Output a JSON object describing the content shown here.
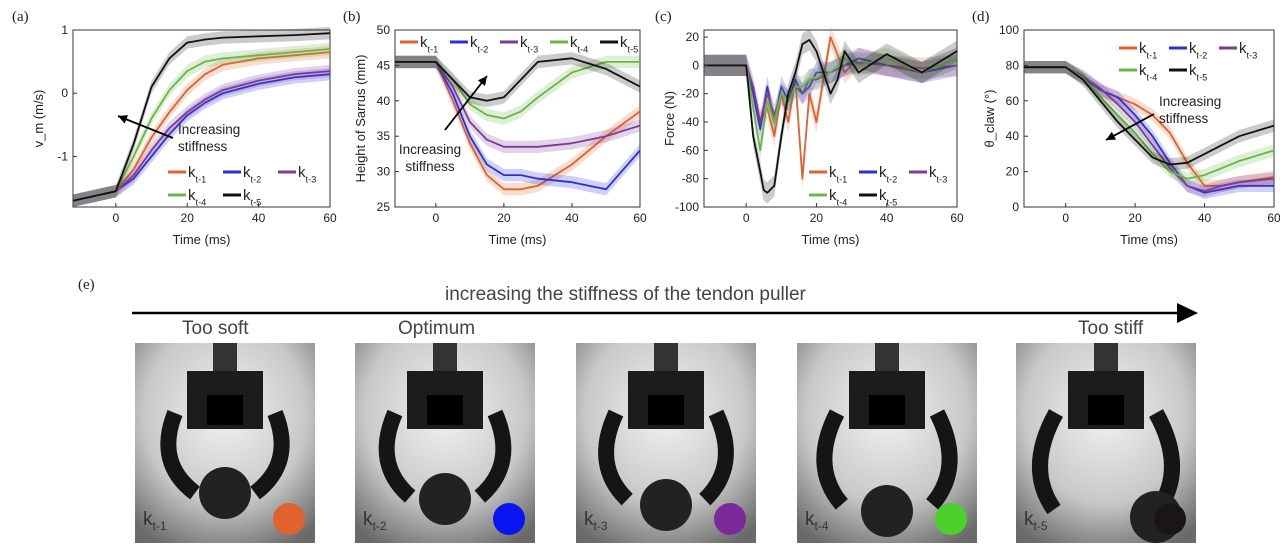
{
  "panel_letters": [
    "(a)",
    "(b)",
    "(c)",
    "(d)",
    "(e)"
  ],
  "colors": {
    "kt1": "#E0622D",
    "kt2": "#2B2FD9",
    "kt3": "#7D3A96",
    "kt4": "#6BB547",
    "kt5": "#111111"
  },
  "chart_data": [
    {
      "type": "line",
      "panel": "(a)",
      "xlabel": "Time (ms)",
      "ylabel": "v_m (m/s)",
      "xlim": [
        -12,
        60
      ],
      "ylim": [
        -1.8,
        1
      ],
      "xticks": [
        0,
        20,
        40,
        60
      ],
      "yticks": [
        -1,
        0,
        1
      ],
      "legend": [
        "k_t-1",
        "k_t-2",
        "k_t-3",
        "k_t-4",
        "k_t-5"
      ],
      "legend_placement": "bottom-right",
      "annotation": "Increasing stiffness",
      "series": [
        {
          "name": "k_t-1",
          "x": [
            -12,
            0,
            5,
            10,
            15,
            20,
            25,
            30,
            40,
            50,
            60
          ],
          "y": [
            -1.7,
            -1.55,
            -1.2,
            -0.7,
            -0.3,
            0.05,
            0.3,
            0.45,
            0.55,
            0.6,
            0.65
          ]
        },
        {
          "name": "k_t-2",
          "x": [
            -12,
            0,
            5,
            10,
            15,
            20,
            25,
            30,
            40,
            50,
            60
          ],
          "y": [
            -1.7,
            -1.55,
            -1.35,
            -1.0,
            -0.65,
            -0.35,
            -0.15,
            0.0,
            0.15,
            0.25,
            0.3
          ]
        },
        {
          "name": "k_t-3",
          "x": [
            -12,
            0,
            5,
            10,
            15,
            20,
            25,
            30,
            40,
            50,
            60
          ],
          "y": [
            -1.7,
            -1.55,
            -1.3,
            -0.9,
            -0.55,
            -0.3,
            -0.1,
            0.05,
            0.2,
            0.3,
            0.35
          ]
        },
        {
          "name": "k_t-4",
          "x": [
            -12,
            0,
            5,
            10,
            15,
            20,
            25,
            30,
            40,
            50,
            60
          ],
          "y": [
            -1.7,
            -1.55,
            -1.0,
            -0.4,
            0.05,
            0.35,
            0.5,
            0.55,
            0.6,
            0.65,
            0.7
          ]
        },
        {
          "name": "k_t-5",
          "x": [
            -12,
            0,
            5,
            10,
            15,
            20,
            25,
            30,
            40,
            50,
            60
          ],
          "y": [
            -1.7,
            -1.55,
            -0.8,
            0.1,
            0.55,
            0.8,
            0.85,
            0.88,
            0.9,
            0.92,
            0.95
          ]
        }
      ]
    },
    {
      "type": "line",
      "panel": "(b)",
      "xlabel": "Time (ms)",
      "ylabel": "Height of Sarrus (mm)",
      "xlim": [
        -12,
        60
      ],
      "ylim": [
        25,
        50
      ],
      "xticks": [
        0,
        20,
        40,
        60
      ],
      "yticks": [
        25,
        30,
        35,
        40,
        45,
        50
      ],
      "legend": [
        "k_t-1",
        "k_t-2",
        "k_t-3",
        "k_t-4",
        "k_t-5"
      ],
      "legend_placement": "top",
      "annotation": "Increasing stiffness",
      "series": [
        {
          "name": "k_t-1",
          "x": [
            -12,
            0,
            5,
            10,
            15,
            20,
            25,
            30,
            40,
            50,
            60
          ],
          "y": [
            45.5,
            45.5,
            40,
            34,
            29.5,
            27.5,
            27.5,
            28,
            31,
            35,
            38.5
          ]
        },
        {
          "name": "k_t-2",
          "x": [
            -12,
            0,
            5,
            10,
            15,
            20,
            25,
            30,
            40,
            50,
            60
          ],
          "y": [
            45.5,
            45.5,
            41,
            35,
            31,
            29.5,
            29.5,
            29,
            28.5,
            27.5,
            33
          ]
        },
        {
          "name": "k_t-3",
          "x": [
            -12,
            0,
            5,
            10,
            15,
            20,
            25,
            30,
            40,
            50,
            60
          ],
          "y": [
            45.5,
            45.5,
            42,
            37,
            34.5,
            33.5,
            33.5,
            33.5,
            34,
            35,
            36.5
          ]
        },
        {
          "name": "k_t-4",
          "x": [
            -12,
            0,
            5,
            10,
            15,
            20,
            25,
            30,
            40,
            50,
            60
          ],
          "y": [
            45.5,
            45.5,
            43,
            39.5,
            38,
            37.5,
            38.5,
            40.5,
            44,
            45.5,
            45.5
          ]
        },
        {
          "name": "k_t-5",
          "x": [
            -12,
            0,
            5,
            10,
            15,
            20,
            25,
            30,
            40,
            50,
            60
          ],
          "y": [
            45.5,
            45.5,
            43,
            40.5,
            40,
            40.5,
            43,
            45.5,
            46,
            44.5,
            42
          ]
        }
      ]
    },
    {
      "type": "line",
      "panel": "(c)",
      "xlabel": "Time (ms)",
      "ylabel": "Force (N)",
      "xlim": [
        -12,
        60
      ],
      "ylim": [
        -100,
        25
      ],
      "xticks": [
        0,
        20,
        40,
        60
      ],
      "yticks": [
        -100,
        -80,
        -60,
        -40,
        -20,
        0,
        20
      ],
      "legend": [
        "k_t-1",
        "k_t-2",
        "k_t-3",
        "k_t-4",
        "k_t-5"
      ],
      "legend_placement": "bottom-right",
      "series": [
        {
          "name": "k_t-1",
          "x": [
            -12,
            0,
            2,
            4,
            6,
            8,
            10,
            12,
            14,
            16,
            18,
            20,
            24,
            28,
            32,
            40,
            50,
            60
          ],
          "y": [
            0,
            0,
            -20,
            -40,
            -30,
            -50,
            -20,
            -40,
            -10,
            -80,
            -20,
            -40,
            20,
            -5,
            5,
            0,
            -2,
            0
          ]
        },
        {
          "name": "k_t-2",
          "x": [
            -12,
            0,
            2,
            4,
            6,
            8,
            10,
            12,
            14,
            16,
            18,
            20,
            24,
            28,
            32,
            40,
            50,
            60
          ],
          "y": [
            0,
            0,
            -20,
            -45,
            -15,
            -40,
            -15,
            -25,
            -10,
            -20,
            -15,
            -5,
            -5,
            0,
            5,
            0,
            -5,
            0
          ]
        },
        {
          "name": "k_t-3",
          "x": [
            -12,
            0,
            2,
            4,
            6,
            8,
            10,
            12,
            14,
            16,
            18,
            20,
            24,
            28,
            32,
            40,
            50,
            60
          ],
          "y": [
            0,
            0,
            -15,
            -40,
            -20,
            -35,
            -20,
            -25,
            -15,
            -20,
            -10,
            -10,
            -5,
            0,
            2,
            0,
            -5,
            5
          ]
        },
        {
          "name": "k_t-4",
          "x": [
            -12,
            0,
            2,
            4,
            6,
            8,
            10,
            12,
            14,
            16,
            18,
            20,
            24,
            28,
            32,
            40,
            50,
            60
          ],
          "y": [
            0,
            0,
            -30,
            -60,
            -25,
            -40,
            -20,
            -25,
            -15,
            -15,
            -10,
            -8,
            -5,
            5,
            0,
            5,
            -5,
            5
          ]
        },
        {
          "name": "k_t-5",
          "x": [
            -12,
            0,
            2,
            4,
            5,
            6,
            8,
            10,
            12,
            14,
            16,
            18,
            20,
            22,
            24,
            26,
            28,
            32,
            40,
            50,
            60
          ],
          "y": [
            0,
            0,
            -50,
            -75,
            -88,
            -90,
            -85,
            -50,
            -20,
            -5,
            15,
            18,
            10,
            -5,
            -20,
            -10,
            10,
            -5,
            8,
            -5,
            10
          ]
        }
      ]
    },
    {
      "type": "line",
      "panel": "(d)",
      "xlabel": "Time (ms)",
      "ylabel": "θ_claw (°)",
      "xlim": [
        -12,
        60
      ],
      "ylim": [
        0,
        100
      ],
      "xticks": [
        0,
        20,
        40,
        60
      ],
      "yticks": [
        0,
        20,
        40,
        60,
        80,
        100
      ],
      "legend": [
        "k_t-1",
        "k_t-2",
        "k_t-3",
        "k_t-4",
        "k_t-5"
      ],
      "legend_placement": "top-right",
      "annotation": "Increasing stiffness",
      "series": [
        {
          "name": "k_t-1",
          "x": [
            -12,
            0,
            5,
            10,
            15,
            20,
            25,
            30,
            35,
            40,
            45,
            50,
            60
          ],
          "y": [
            79,
            79,
            73,
            66,
            62,
            58,
            52,
            42,
            25,
            12,
            12,
            14,
            17
          ]
        },
        {
          "name": "k_t-2",
          "x": [
            -12,
            0,
            5,
            10,
            15,
            20,
            25,
            30,
            35,
            40,
            45,
            50,
            60
          ],
          "y": [
            79,
            79,
            73,
            66,
            62,
            52,
            40,
            25,
            12,
            8,
            10,
            12,
            12
          ]
        },
        {
          "name": "k_t-3",
          "x": [
            -12,
            0,
            5,
            10,
            15,
            20,
            25,
            30,
            35,
            40,
            45,
            50,
            60
          ],
          "y": [
            79,
            79,
            74,
            67,
            58,
            48,
            35,
            22,
            12,
            9,
            12,
            14,
            16
          ]
        },
        {
          "name": "k_t-4",
          "x": [
            -12,
            0,
            5,
            10,
            15,
            20,
            25,
            30,
            35,
            40,
            45,
            50,
            60
          ],
          "y": [
            79,
            79,
            73,
            62,
            52,
            42,
            30,
            20,
            16,
            18,
            22,
            26,
            32
          ]
        },
        {
          "name": "k_t-5",
          "x": [
            -12,
            0,
            5,
            10,
            15,
            20,
            25,
            30,
            35,
            40,
            45,
            50,
            60
          ],
          "y": [
            79,
            79,
            72,
            60,
            48,
            38,
            28,
            24,
            25,
            30,
            35,
            40,
            46
          ]
        }
      ]
    }
  ],
  "panel_e": {
    "caption": "increasing the stiffness of the tendon puller",
    "labels": {
      "too_soft": "Too soft",
      "optimum": "Optimum",
      "too_stiff": "Too stiff"
    },
    "photos": [
      {
        "k": "k",
        "sub": "t-1",
        "color": "#E0622D"
      },
      {
        "k": "k",
        "sub": "t-2",
        "color": "#0A14F0"
      },
      {
        "k": "k",
        "sub": "t-3",
        "color": "#7A2A9A"
      },
      {
        "k": "k",
        "sub": "t-4",
        "color": "#4CD02C"
      },
      {
        "k": "k",
        "sub": "t-5",
        "color": "#1A1616"
      }
    ]
  }
}
